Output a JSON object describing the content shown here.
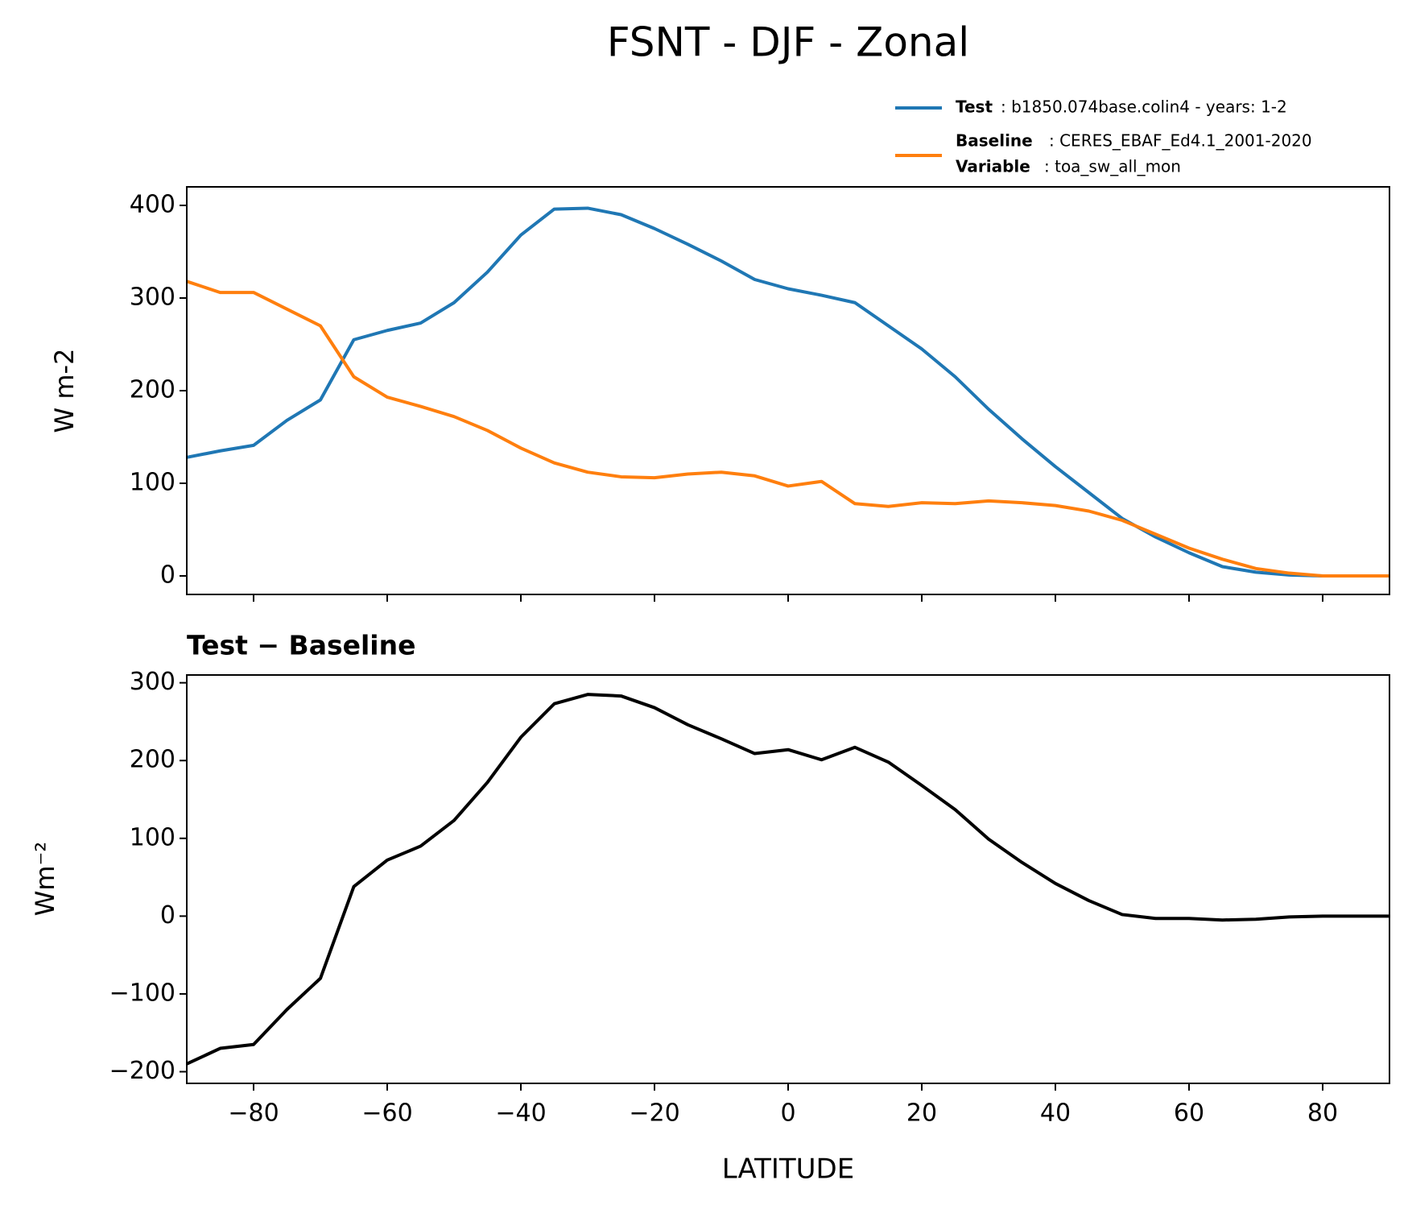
{
  "title": "FSNT - DJF - Zonal",
  "legend": [
    {
      "name": "Test",
      "text": ": b1850.074base.colin4 - years: 1-2"
    },
    {
      "name": "Baseline",
      "text": ": CERES_EBAF_Ed4.1_2001-2020",
      "name2": "Variable",
      "text2": ": toa_sw_all_mon"
    }
  ],
  "chart_data": [
    {
      "type": "line",
      "ylabel": "W m-2",
      "x": [
        -90,
        -85,
        -80,
        -75,
        -70,
        -65,
        -60,
        -55,
        -50,
        -45,
        -40,
        -35,
        -30,
        -25,
        -20,
        -15,
        -10,
        -5,
        0,
        5,
        10,
        15,
        20,
        25,
        30,
        35,
        40,
        45,
        50,
        55,
        60,
        65,
        70,
        75,
        80,
        85,
        90
      ],
      "series": [
        {
          "name": "Test",
          "color": "#1f77b4",
          "values": [
            128,
            135,
            141,
            168,
            190,
            255,
            265,
            273,
            295,
            328,
            368,
            396,
            397,
            390,
            375,
            358,
            340,
            320,
            310,
            303,
            295,
            270,
            245,
            215,
            180,
            148,
            118,
            90,
            62,
            42,
            25,
            10,
            4,
            1,
            0,
            0,
            0
          ]
        },
        {
          "name": "Baseline",
          "color": "#ff7f0e",
          "values": [
            318,
            306,
            306,
            288,
            270,
            215,
            193,
            183,
            172,
            157,
            138,
            122,
            112,
            107,
            106,
            110,
            112,
            108,
            97,
            102,
            78,
            75,
            79,
            78,
            81,
            79,
            76,
            70,
            60,
            45,
            30,
            18,
            8,
            3,
            0,
            0,
            0
          ]
        }
      ],
      "xlim": [
        -90,
        90
      ],
      "xticks": [
        -80,
        -60,
        -40,
        -20,
        0,
        20,
        40,
        60,
        80
      ],
      "ylim": [
        -20,
        420
      ],
      "yticks": [
        0,
        100,
        200,
        300,
        400
      ]
    },
    {
      "type": "line",
      "title": "Test − Baseline",
      "ylabel": "Wm⁻²",
      "xlabel": "LATITUDE",
      "x": [
        -90,
        -85,
        -80,
        -75,
        -70,
        -65,
        -60,
        -55,
        -50,
        -45,
        -40,
        -35,
        -30,
        -25,
        -20,
        -15,
        -10,
        -5,
        0,
        5,
        10,
        15,
        20,
        25,
        30,
        35,
        40,
        45,
        50,
        55,
        60,
        65,
        70,
        75,
        80,
        85,
        90
      ],
      "series": [
        {
          "color": "#000000",
          "values": [
            -190,
            -170,
            -165,
            -120,
            -80,
            38,
            72,
            90,
            123,
            172,
            230,
            273,
            285,
            283,
            268,
            246,
            228,
            209,
            214,
            201,
            217,
            198,
            168,
            137,
            99,
            69,
            42,
            20,
            2,
            -3,
            -3,
            -5,
            -4,
            -1,
            0,
            0,
            0
          ]
        }
      ],
      "xlim": [
        -90,
        90
      ],
      "xticks": [
        {
          "value": -80,
          "label": "−80"
        },
        {
          "value": -60,
          "label": "−60"
        },
        {
          "value": -40,
          "label": "−40"
        },
        {
          "value": -20,
          "label": "−20"
        },
        0,
        20,
        40,
        60,
        80
      ],
      "ylim": [
        -215,
        310
      ],
      "yticks": [
        {
          "value": -200,
          "label": "−200"
        },
        {
          "value": -100,
          "label": "−100"
        },
        0,
        100,
        200,
        300
      ]
    }
  ]
}
